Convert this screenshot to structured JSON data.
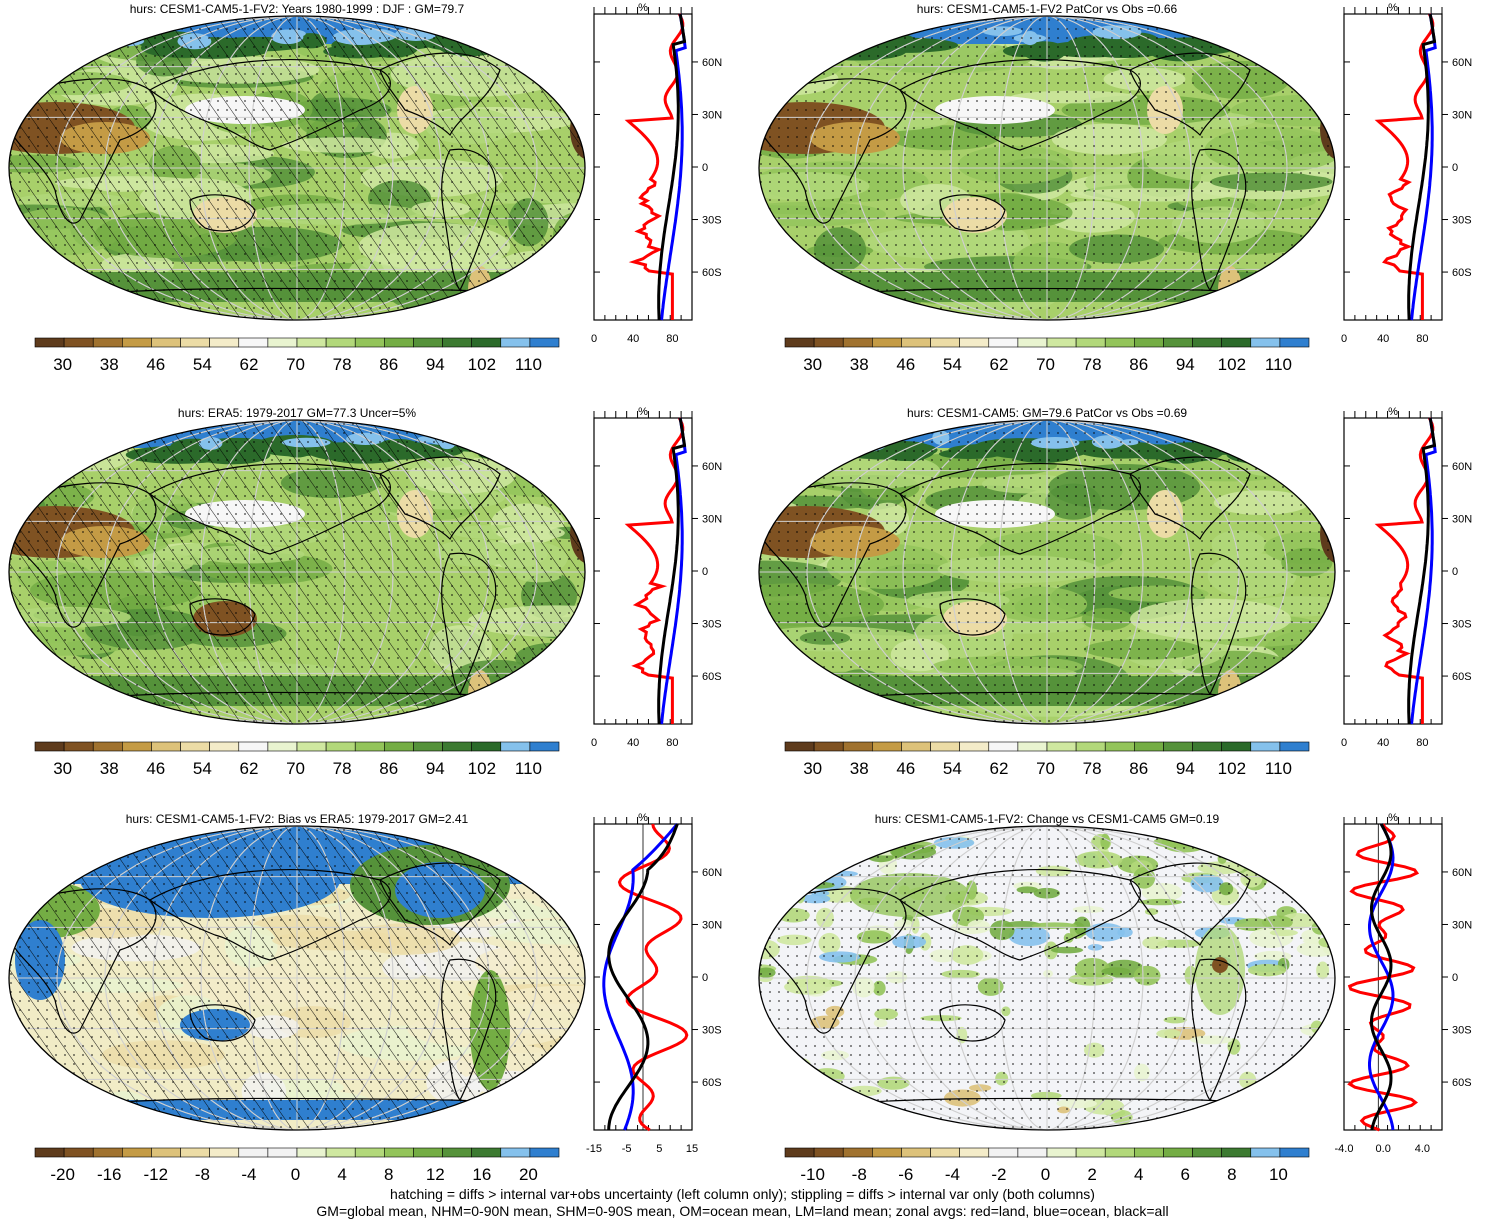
{
  "panels": [
    {
      "id": "p1",
      "title": "hurs: CESM1-CAM5-1-FV2: Years 1980-1999 : DJF : GM=79.7",
      "colorbar_labels": [
        "30",
        "38",
        "46",
        "54",
        "62",
        "70",
        "78",
        "86",
        "94",
        "102",
        "110"
      ],
      "palette": "abs",
      "hatching": true,
      "zonal_ticks": [
        "0",
        "40",
        "80"
      ],
      "zonal_unit": "%",
      "lat_labels": [
        "60N",
        "30N",
        "0",
        "30S",
        "60S"
      ]
    },
    {
      "id": "p2",
      "title": "hurs: CESM1-CAM5-1-FV2 PatCor vs Obs =0.66",
      "colorbar_labels": [
        "30",
        "38",
        "46",
        "54",
        "62",
        "70",
        "78",
        "86",
        "94",
        "102",
        "110"
      ],
      "palette": "abs",
      "hatching": false,
      "zonal_ticks": [
        "0",
        "40",
        "80"
      ],
      "zonal_unit": "%",
      "lat_labels": [
        "60N",
        "30N",
        "0",
        "30S",
        "60S"
      ]
    },
    {
      "id": "p3",
      "title": "hurs: ERA5: 1979-2017 GM=77.3 Uncer=5%",
      "colorbar_labels": [
        "30",
        "38",
        "46",
        "54",
        "62",
        "70",
        "78",
        "86",
        "94",
        "102",
        "110"
      ],
      "palette": "abs",
      "hatching": true,
      "zonal_ticks": [
        "0",
        "40",
        "80"
      ],
      "zonal_unit": "%",
      "lat_labels": [
        "60N",
        "30N",
        "0",
        "30S",
        "60S"
      ]
    },
    {
      "id": "p4",
      "title": "hurs: CESM1-CAM5: GM=79.6 PatCor vs Obs =0.69",
      "colorbar_labels": [
        "30",
        "38",
        "46",
        "54",
        "62",
        "70",
        "78",
        "86",
        "94",
        "102",
        "110"
      ],
      "palette": "abs",
      "hatching": false,
      "zonal_ticks": [
        "0",
        "40",
        "80"
      ],
      "zonal_unit": "%",
      "lat_labels": [
        "60N",
        "30N",
        "0",
        "30S",
        "60S"
      ]
    },
    {
      "id": "p5",
      "title": "hurs: CESM1-CAM5-1-FV2: Bias vs ERA5: 1979-2017 GM=2.41",
      "colorbar_labels": [
        "-20",
        "-16",
        "-12",
        "-8",
        "-4",
        "0",
        "4",
        "8",
        "12",
        "16",
        "20"
      ],
      "palette": "diff",
      "hatching": true,
      "zonal_ticks": [
        "-15",
        "-5",
        "5",
        "15"
      ],
      "zonal_unit": "%",
      "lat_labels": [
        "60N",
        "30N",
        "0",
        "30S",
        "60S"
      ]
    },
    {
      "id": "p6",
      "title": "hurs: CESM1-CAM5-1-FV2: Change vs CESM1-CAM5 GM=0.19",
      "colorbar_labels": [
        "-10",
        "-8",
        "-6",
        "-4",
        "-2",
        "0",
        "2",
        "4",
        "6",
        "8",
        "10"
      ],
      "palette": "diff",
      "hatching": false,
      "zonal_ticks": [
        "-4.0",
        "0.0",
        "4.0"
      ],
      "zonal_unit": "%",
      "lat_labels": [
        "60N",
        "30N",
        "0",
        "30S",
        "60S"
      ]
    }
  ],
  "colors": {
    "abs_palette": [
      "#5e3b1c",
      "#7f5222",
      "#a0722f",
      "#c49b45",
      "#ddc27a",
      "#ecdca6",
      "#f4ecc9",
      "#f7f7f7",
      "#e9f4d0",
      "#cfe8a0",
      "#b2d87a",
      "#93c45a",
      "#74ad44",
      "#55923a",
      "#3c7a31",
      "#2b6a2a",
      "#85c1ec",
      "#2f7fcf"
    ],
    "diff_palette": [
      "#5e3b1c",
      "#7f5222",
      "#a0722f",
      "#c49b45",
      "#ddc27a",
      "#ecdca6",
      "#f4ecc9",
      "#f2f2f2",
      "#f2f2f2",
      "#e9f4d0",
      "#cfe8a0",
      "#b2d87a",
      "#93c45a",
      "#74ad44",
      "#55923a",
      "#3c7a31",
      "#85c1ec",
      "#2f7fcf"
    ],
    "land_line": "#ff0000",
    "ocean_line": "#0000ff",
    "all_line": "#000000"
  },
  "footer": {
    "line1": "hatching = diffs > internal var+obs uncertainty (left column only); stippling = diffs > internal var only (both columns)",
    "line2": "GM=global mean, NHM=0-90N mean, SHM=0-90S mean, OM=ocean mean, LM=land mean; zonal avgs: red=land, blue=ocean, black=all"
  }
}
